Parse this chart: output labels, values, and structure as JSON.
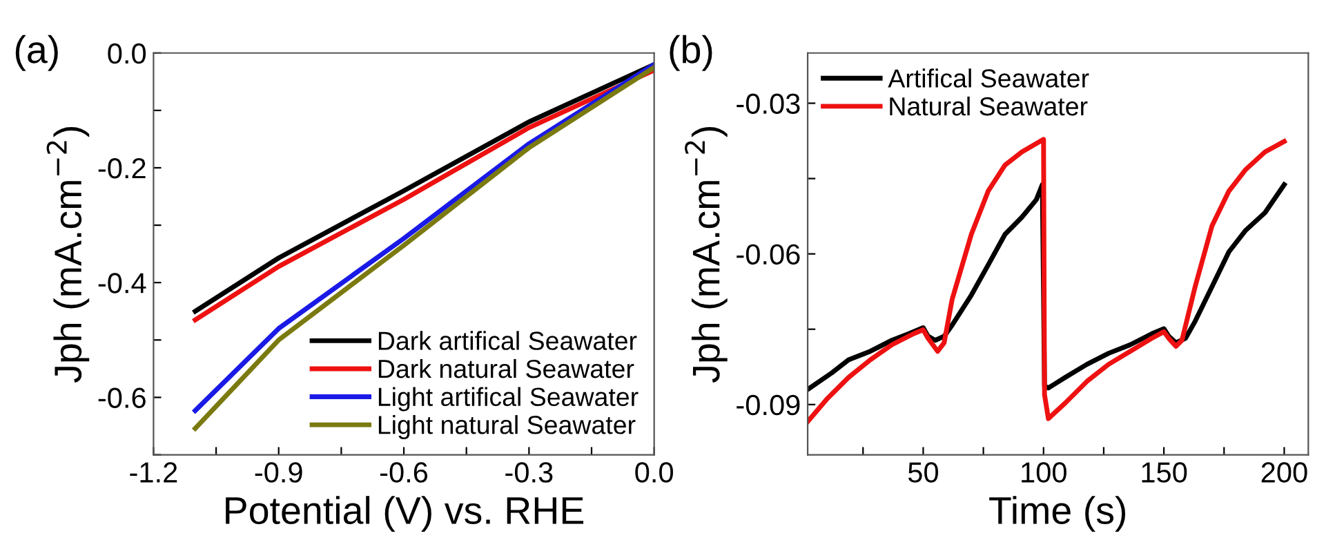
{
  "chart_data": [
    {
      "type": "line",
      "annotations": [
        "(a)"
      ],
      "xlabel": "Potential (V) vs. RHE",
      "ylabel": "Jph (mA.cm$^{−2}$)",
      "xlim": [
        -1.2,
        0.0
      ],
      "ylim": [
        -0.7,
        0.0
      ],
      "xticks": [
        -1.2,
        {
          "value": -1.05,
          "label": null
        },
        -0.9,
        {
          "value": -0.75,
          "label": null
        },
        -0.6,
        {
          "value": -0.45,
          "label": null
        },
        -0.3,
        {
          "value": -0.15,
          "label": null
        },
        {
          "value": 0,
          "label": "0.0"
        }
      ],
      "yticks": [
        {
          "value": -0.7,
          "label": null
        },
        -0.6,
        {
          "value": -0.5,
          "label": null
        },
        -0.4,
        {
          "value": -0.3,
          "label": null
        },
        -0.2,
        {
          "value": -0.1,
          "label": null
        },
        {
          "value": 0,
          "label": "0.0"
        }
      ],
      "legend": "bottom right",
      "grid": false,
      "marker": "none",
      "line_style": "solid",
      "series": [
        {
          "name": "Dark artifical Seawater",
          "color": "#000000",
          "x": [
            -1.1,
            -0.9,
            -0.6,
            -0.3,
            0.0
          ],
          "values": [
            -0.45,
            -0.357,
            -0.24,
            -0.12,
            -0.02
          ]
        },
        {
          "name": "Dark natural Seawater",
          "color": "#ee1111",
          "x": [
            -1.1,
            -0.9,
            -0.6,
            -0.3,
            0.0
          ],
          "values": [
            -0.465,
            -0.372,
            -0.255,
            -0.13,
            -0.03
          ]
        },
        {
          "name": "Light artifical Seawater",
          "color": "#1a1ae6",
          "x": [
            -1.1,
            -0.9,
            -0.6,
            -0.3,
            0.0
          ],
          "values": [
            -0.623,
            -0.48,
            -0.323,
            -0.158,
            -0.02
          ]
        },
        {
          "name": "Light natural Seawater",
          "color": "#7a7a10",
          "x": [
            -1.1,
            -0.9,
            -0.6,
            -0.3,
            0.0
          ],
          "values": [
            -0.654,
            -0.5,
            -0.335,
            -0.165,
            -0.025
          ]
        }
      ]
    },
    {
      "type": "line",
      "annotations": [
        "(b)"
      ],
      "xlabel": "Time (s)",
      "ylabel": "Jph (mA.cm$^{−2}$)",
      "xlim": [
        2,
        210
      ],
      "ylim": [
        -0.1,
        -0.02
      ],
      "xticks": [
        {
          "value": 25,
          "label": null
        },
        50,
        {
          "value": 75,
          "label": null
        },
        100,
        {
          "value": 125,
          "label": null
        },
        150,
        {
          "value": 175,
          "label": null
        },
        200
      ],
      "yticks": [
        -0.09,
        {
          "value": -0.075,
          "label": null
        },
        -0.06,
        {
          "value": -0.045,
          "label": null
        },
        -0.03
      ],
      "legend": "top left",
      "grid": false,
      "marker": "none",
      "line_style": "solid",
      "series": [
        {
          "name": "Artifical Seawater",
          "color": "#000000",
          "x": [
            2,
            12,
            19,
            28,
            37,
            44,
            50,
            52,
            55,
            58.7,
            62,
            70,
            77,
            84,
            91,
            97,
            99.5,
            100.4,
            102,
            109,
            118,
            127,
            136,
            145,
            150,
            152,
            155,
            159,
            163,
            170,
            177,
            184,
            192,
            200
          ],
          "values": [
            -0.087,
            -0.0837,
            -0.0811,
            -0.0794,
            -0.0772,
            -0.0759,
            -0.0747,
            -0.0764,
            -0.0772,
            -0.0764,
            -0.0742,
            -0.0682,
            -0.0622,
            -0.0561,
            -0.0527,
            -0.0492,
            -0.0462,
            -0.0863,
            -0.0867,
            -0.0846,
            -0.082,
            -0.0798,
            -0.0781,
            -0.0759,
            -0.0749,
            -0.0764,
            -0.0777,
            -0.0768,
            -0.0734,
            -0.0665,
            -0.0596,
            -0.0553,
            -0.0518,
            -0.0462
          ]
        },
        {
          "name": "Natural Seawater",
          "color": "#ee1111",
          "x": [
            2,
            10,
            19,
            28,
            37,
            46,
            50,
            52,
            56,
            58.7,
            62,
            70,
            77,
            84,
            91,
            100,
            100.4,
            102,
            109,
            118,
            127,
            136,
            145,
            150,
            152,
            155,
            157.5,
            163,
            170,
            177,
            184,
            192,
            200
          ],
          "values": [
            -0.0934,
            -0.0889,
            -0.0846,
            -0.0811,
            -0.0781,
            -0.0759,
            -0.0751,
            -0.0768,
            -0.0794,
            -0.0777,
            -0.0691,
            -0.0561,
            -0.0475,
            -0.0423,
            -0.0397,
            -0.0372,
            -0.088,
            -0.0928,
            -0.0897,
            -0.0854,
            -0.082,
            -0.0794,
            -0.0768,
            -0.0755,
            -0.0768,
            -0.0784,
            -0.0772,
            -0.0665,
            -0.0544,
            -0.0475,
            -0.0432,
            -0.0397,
            -0.0376
          ]
        }
      ]
    }
  ]
}
